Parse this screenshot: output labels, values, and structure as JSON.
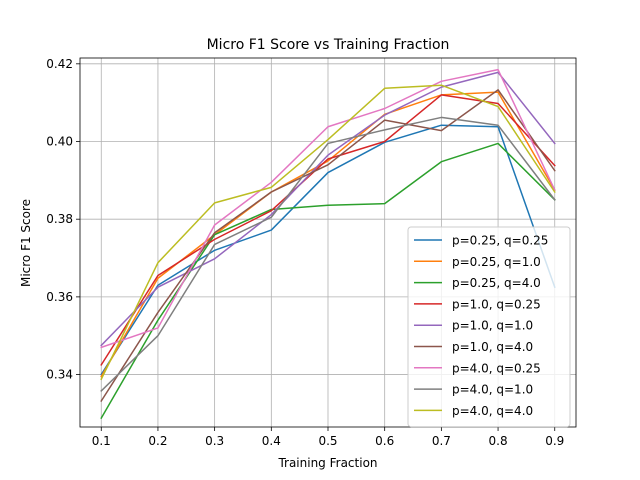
{
  "chart_data": {
    "type": "line",
    "title": "Micro F1 Score vs Training Fraction",
    "xlabel": "Training Fraction",
    "ylabel": "Micro F1 Score",
    "x": [
      0.1,
      0.2,
      0.3,
      0.4,
      0.5,
      0.6,
      0.7,
      0.8,
      0.9
    ],
    "x_ticks": [
      "0.1",
      "0.2",
      "0.3",
      "0.4",
      "0.5",
      "0.6",
      "0.7",
      "0.8",
      "0.9"
    ],
    "y_ticks": [
      "0.34",
      "0.36",
      "0.38",
      "0.40",
      "0.42"
    ],
    "y_tick_values": [
      0.34,
      0.36,
      0.38,
      0.4,
      0.42
    ],
    "xlim": [
      0.0625,
      0.9375
    ],
    "ylim": [
      0.3265,
      0.4215
    ],
    "grid": true,
    "legend_position": "lower-right",
    "series": [
      {
        "name": "p=0.25, q=0.25",
        "color": "#1f77b4",
        "values": [
          0.34,
          0.363,
          0.372,
          0.3772,
          0.392,
          0.3998,
          0.4042,
          0.4038,
          0.3625
        ]
      },
      {
        "name": "p=0.25, q=1.0",
        "color": "#ff7f0e",
        "values": [
          0.3395,
          0.3648,
          0.376,
          0.387,
          0.395,
          0.407,
          0.412,
          0.4127,
          0.3875
        ]
      },
      {
        "name": "p=0.25, q=4.0",
        "color": "#2ca02c",
        "values": [
          0.3288,
          0.354,
          0.376,
          0.3825,
          0.3836,
          0.384,
          0.3948,
          0.3995,
          0.385
        ]
      },
      {
        "name": "p=1.0, q=0.25",
        "color": "#d62728",
        "values": [
          0.3425,
          0.3655,
          0.3748,
          0.3822,
          0.3955,
          0.4,
          0.412,
          0.4098,
          0.3938
        ]
      },
      {
        "name": "p=1.0, q=1.0",
        "color": "#9467bd",
        "values": [
          0.3475,
          0.3625,
          0.3698,
          0.3812,
          0.3965,
          0.4068,
          0.414,
          0.4178,
          0.3995
        ]
      },
      {
        "name": "p=1.0, q=4.0",
        "color": "#8c564b",
        "values": [
          0.3332,
          0.356,
          0.3765,
          0.387,
          0.394,
          0.4055,
          0.4028,
          0.4133,
          0.3925
        ]
      },
      {
        "name": "p=4.0, q=0.25",
        "color": "#e377c2",
        "values": [
          0.347,
          0.352,
          0.3785,
          0.3895,
          0.4038,
          0.4085,
          0.4155,
          0.4185,
          0.3875
        ]
      },
      {
        "name": "p=4.0, q=1.0",
        "color": "#7f7f7f",
        "values": [
          0.3358,
          0.35,
          0.3735,
          0.3805,
          0.3995,
          0.403,
          0.4062,
          0.4042,
          0.385
        ]
      },
      {
        "name": "p=4.0, q=4.0",
        "color": "#bcbd22",
        "values": [
          0.3388,
          0.3688,
          0.3842,
          0.3882,
          0.4005,
          0.4137,
          0.4145,
          0.409,
          0.387
        ]
      }
    ]
  }
}
